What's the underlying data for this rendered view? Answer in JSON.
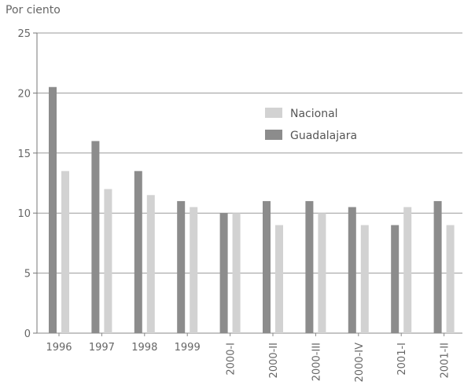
{
  "chart_data": {
    "type": "bar",
    "ylabel": "Por ciento",
    "ylim": [
      0,
      25
    ],
    "yticks": [
      0,
      5,
      10,
      15,
      20,
      25
    ],
    "grid": true,
    "legend_position": "center-right",
    "categories": [
      "1996",
      "1997",
      "1998",
      "1999",
      "2000-I",
      "2000-II",
      "2000-III",
      "2000-IV",
      "2001-I",
      "2001-II"
    ],
    "series": [
      {
        "name": "Guadalajara",
        "color": "#8c8c8c",
        "values": [
          20.5,
          16.0,
          13.5,
          11.0,
          10.0,
          11.0,
          11.0,
          10.5,
          9.0,
          11.0
        ]
      },
      {
        "name": "Nacional",
        "color": "#d2d2d2",
        "values": [
          13.5,
          12.0,
          11.5,
          10.5,
          10.0,
          9.0,
          10.0,
          9.0,
          10.5,
          9.0
        ]
      }
    ]
  }
}
